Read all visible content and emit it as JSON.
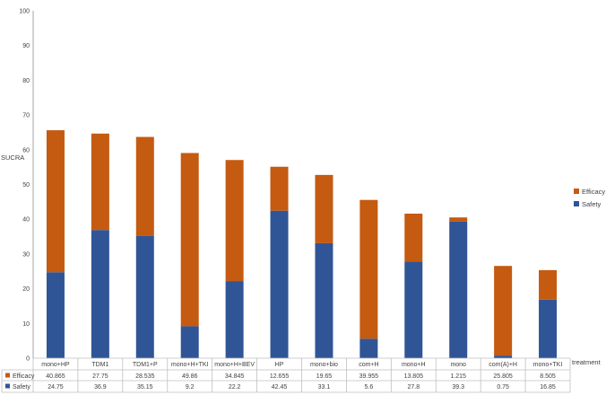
{
  "chart_data": {
    "type": "bar",
    "stacked": true,
    "ylabel": "SUCRA",
    "xlabel": "treatment",
    "ylim": [
      0,
      100
    ],
    "yticks": [
      0,
      10,
      20,
      30,
      40,
      50,
      60,
      70,
      80,
      90,
      100
    ],
    "grid": false,
    "legend_position": "right",
    "data_table": true,
    "categories": [
      "mono+HP",
      "TDM1",
      "TDM1+P",
      "mono+H+TKI",
      "mono+H+BEV",
      "HP",
      "mono+bio",
      "com+H",
      "mono+H",
      "mono",
      "com(A)+H",
      "mono+TKI"
    ],
    "series": [
      {
        "name": "Safety",
        "color": "#2f5597",
        "values": [
          24.75,
          36.9,
          35.15,
          9.2,
          22.2,
          42.45,
          33.1,
          5.6,
          27.8,
          39.3,
          0.75,
          16.85
        ],
        "labels": [
          "24.75",
          "36.9",
          "35.15",
          "9.2",
          "22.2",
          "42.45",
          "33.1",
          "5.6",
          "27.8",
          "39.3",
          "0.75",
          "16.85"
        ]
      },
      {
        "name": "Efficacy",
        "color": "#c55a11",
        "values": [
          40.865,
          27.75,
          28.535,
          49.86,
          34.845,
          12.655,
          19.65,
          39.955,
          13.805,
          1.215,
          25.805,
          8.505
        ],
        "labels": [
          "40.865",
          "27.75",
          "28.535",
          "49.86",
          "34.845",
          "12.655",
          "19.65",
          "39.955",
          "13.805",
          "1.215",
          "25.805",
          "8.505"
        ]
      }
    ]
  }
}
